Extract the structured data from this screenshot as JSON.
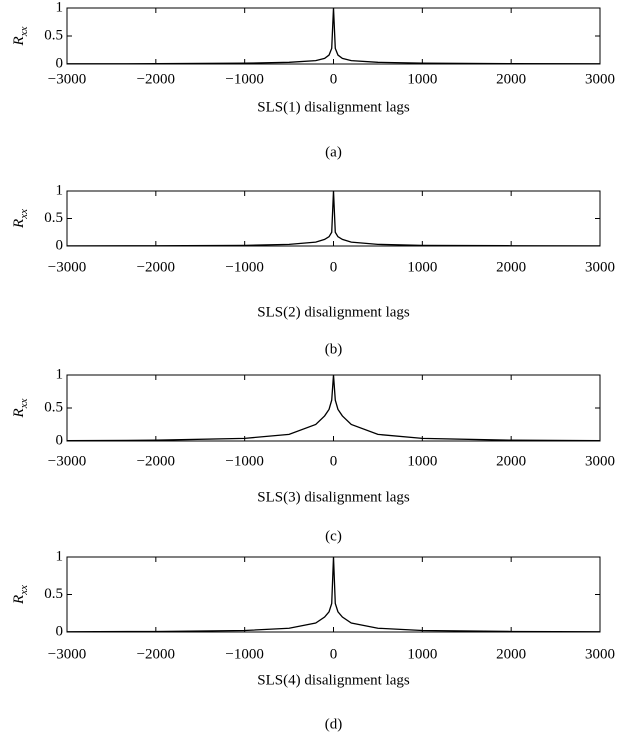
{
  "chart_data": [
    {
      "type": "line",
      "xlabel": "SLS(1) disalignment lags",
      "ylabel": {
        "text": "R",
        "subscript": "xx"
      },
      "caption": "(a)",
      "x": [
        -3000,
        -2000,
        -1000,
        -500,
        -200,
        -100,
        -50,
        -20,
        0,
        20,
        50,
        100,
        200,
        500,
        1000,
        2000,
        3000
      ],
      "series": [
        {
          "color": "#000000",
          "values": [
            0.003,
            0.006,
            0.015,
            0.03,
            0.06,
            0.1,
            0.16,
            0.28,
            1,
            0.28,
            0.16,
            0.1,
            0.06,
            0.03,
            0.015,
            0.006,
            0.003
          ]
        }
      ],
      "xlim": [
        -3000,
        3000
      ],
      "ylim": [
        0,
        1
      ],
      "xticks": [
        {
          "value": -3000,
          "label": "−3000"
        },
        {
          "value": -2000,
          "label": "−2000"
        },
        {
          "value": -1000,
          "label": "−1000"
        },
        0,
        1000,
        2000,
        3000
      ],
      "yticks": [
        0,
        0.5,
        1
      ]
    },
    {
      "type": "line",
      "xlabel": "SLS(2) disalignment lags",
      "ylabel": {
        "text": "R",
        "subscript": "xx"
      },
      "caption": "(b)",
      "x": [
        -3000,
        -2000,
        -1000,
        -500,
        -200,
        -100,
        -50,
        -20,
        0,
        20,
        50,
        100,
        200,
        500,
        1000,
        2000,
        3000
      ],
      "series": [
        {
          "color": "#000000",
          "values": [
            0.002,
            0.005,
            0.012,
            0.03,
            0.07,
            0.12,
            0.17,
            0.25,
            1,
            0.25,
            0.17,
            0.12,
            0.07,
            0.03,
            0.012,
            0.005,
            0.002
          ]
        }
      ],
      "xlim": [
        -3000,
        3000
      ],
      "ylim": [
        0,
        1
      ],
      "xticks": [
        {
          "value": -3000,
          "label": "−3000"
        },
        {
          "value": -2000,
          "label": "−2000"
        },
        {
          "value": -1000,
          "label": "−1000"
        },
        0,
        1000,
        2000,
        3000
      ],
      "yticks": [
        0,
        0.5,
        1
      ]
    },
    {
      "type": "line",
      "xlabel": "SLS(3) disalignment lags",
      "ylabel": {
        "text": "R",
        "subscript": "xx"
      },
      "caption": "(c)",
      "x": [
        -3000,
        -2000,
        -1000,
        -500,
        -200,
        -100,
        -50,
        -20,
        0,
        20,
        50,
        100,
        200,
        500,
        1000,
        2000,
        3000
      ],
      "series": [
        {
          "color": "#000000",
          "values": [
            0.005,
            0.012,
            0.04,
            0.1,
            0.25,
            0.38,
            0.48,
            0.62,
            1,
            0.62,
            0.48,
            0.38,
            0.25,
            0.1,
            0.04,
            0.012,
            0.005
          ]
        }
      ],
      "xlim": [
        -3000,
        3000
      ],
      "ylim": [
        0,
        1
      ],
      "xticks": [
        {
          "value": -3000,
          "label": "−3000"
        },
        {
          "value": -2000,
          "label": "−2000"
        },
        {
          "value": -1000,
          "label": "−1000"
        },
        0,
        1000,
        2000,
        3000
      ],
      "yticks": [
        0,
        0.5,
        1
      ]
    },
    {
      "type": "line",
      "xlabel": "SLS(4) disalignment lags",
      "ylabel": {
        "text": "R",
        "subscript": "xx"
      },
      "caption": "(d)",
      "x": [
        -3000,
        -2000,
        -1000,
        -500,
        -200,
        -100,
        -50,
        -20,
        0,
        20,
        50,
        100,
        200,
        500,
        1000,
        2000,
        3000
      ],
      "series": [
        {
          "color": "#000000",
          "values": [
            0.003,
            0.007,
            0.02,
            0.05,
            0.12,
            0.2,
            0.27,
            0.38,
            1,
            0.38,
            0.27,
            0.2,
            0.12,
            0.05,
            0.02,
            0.007,
            0.003
          ]
        }
      ],
      "xlim": [
        -3000,
        3000
      ],
      "ylim": [
        0,
        1
      ],
      "xticks": [
        {
          "value": -3000,
          "label": "−3000"
        },
        {
          "value": -2000,
          "label": "−2000"
        },
        {
          "value": -1000,
          "label": "−1000"
        },
        0,
        1000,
        2000,
        3000
      ],
      "yticks": [
        0,
        0.5,
        1
      ]
    }
  ]
}
